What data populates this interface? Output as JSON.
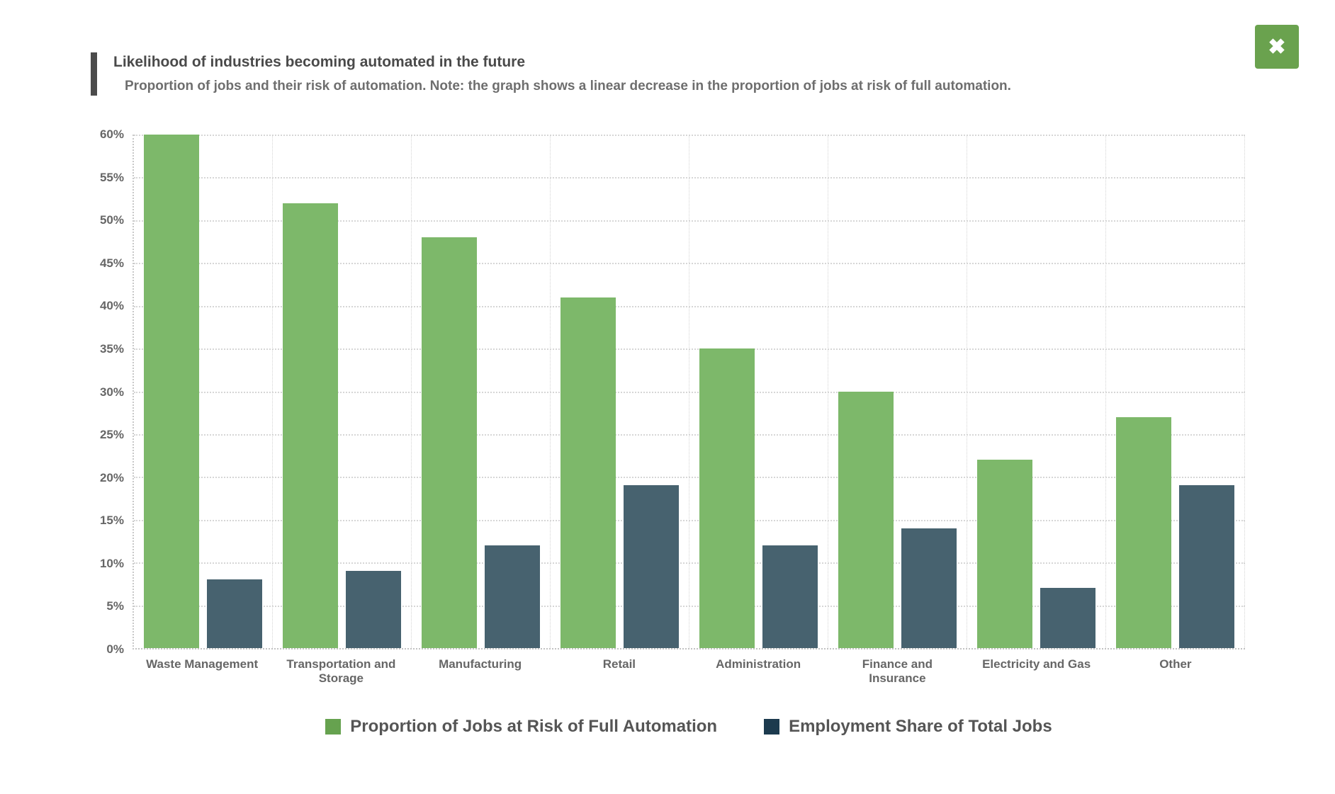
{
  "header": {
    "title": "Likelihood of industries becoming automated in the future",
    "subtitle": "Proportion of jobs and their risk of automation. Note: the graph shows a linear decrease in the proportion of jobs at risk of full automation."
  },
  "close_button": {
    "icon": "✖",
    "background": "#6aa24e"
  },
  "chart_data": {
    "type": "bar",
    "title": "Likelihood of industries becoming automated in the future",
    "subtitle": "Proportion of jobs and their risk of automation. Note: the graph shows a linear decrease in the proportion of jobs at risk of full automation.",
    "categories": [
      "Waste Management",
      "Transportation and Storage",
      "Manufacturing",
      "Retail",
      "Administration",
      "Finance and Insurance",
      "Electricity and Gas",
      "Other"
    ],
    "series": [
      {
        "name": "Proportion of Jobs at Risk of Full Automation",
        "color": "#7db86a",
        "legend_color": "#66a24f",
        "values": [
          60,
          52,
          48,
          41,
          35,
          30,
          22,
          27
        ]
      },
      {
        "name": "Employment Share of Total Jobs",
        "color": "#47626f",
        "legend_color": "#1c3a4e",
        "values": [
          8,
          9,
          12,
          19,
          12,
          14,
          7,
          19
        ]
      }
    ],
    "ylim": [
      0,
      60
    ],
    "ytick_step": 5,
    "yticks": [
      {
        "value": 0,
        "label": "0%"
      },
      {
        "value": 5,
        "label": "5%"
      },
      {
        "value": 10,
        "label": "10%"
      },
      {
        "value": 15,
        "label": "15%"
      },
      {
        "value": 20,
        "label": "20%"
      },
      {
        "value": 25,
        "label": "25%"
      },
      {
        "value": 30,
        "label": "30%"
      },
      {
        "value": 35,
        "label": "35%"
      },
      {
        "value": 40,
        "label": "40%"
      },
      {
        "value": 45,
        "label": "45%"
      },
      {
        "value": 50,
        "label": "50%"
      },
      {
        "value": 55,
        "label": "55%"
      },
      {
        "value": 60,
        "label": "60%"
      }
    ],
    "grid": {
      "horizontal": "dotted",
      "vertical_category_separators": "dotted",
      "color": "#d6d6d6"
    },
    "legend_position": "bottom"
  }
}
